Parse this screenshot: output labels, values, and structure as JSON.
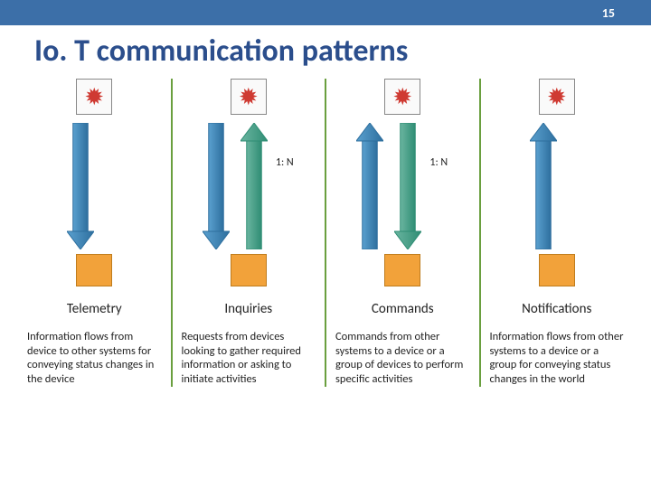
{
  "page_number": "15",
  "title": "Io. T communication patterns",
  "colors": {
    "header_bg": "#3c6fa8",
    "title": "#2b4e8c",
    "divider": "#6a9f3f",
    "device_fill": "#cf3a32",
    "orange_fill": "#f2a23a",
    "orange_stroke": "#bf7c1d",
    "arrow_blue_light": "#5aa0cf",
    "arrow_blue_dark": "#2e6f9e",
    "arrow_teal_light": "#6ab5a0",
    "arrow_teal_dark": "#2f8d74",
    "text": "#222222"
  },
  "columns": [
    {
      "name": "Telemetry",
      "desc": "Information flows from device to other systems for conveying status changes in the device",
      "arrow": "down_single",
      "ratio": ""
    },
    {
      "name": "Inquiries",
      "desc": "Requests from devices looking to gather required information or asking to initiate activities",
      "arrow": "down_up",
      "ratio": "1: N"
    },
    {
      "name": "Commands",
      "desc": "Commands from other systems to a device or a group of devices to perform specific activities",
      "arrow": "up_down",
      "ratio": "1: N"
    },
    {
      "name": "Notifications",
      "desc": "Information flows from other systems to a device or a group for conveying status changes in the world",
      "arrow": "up_single",
      "ratio": ""
    }
  ]
}
